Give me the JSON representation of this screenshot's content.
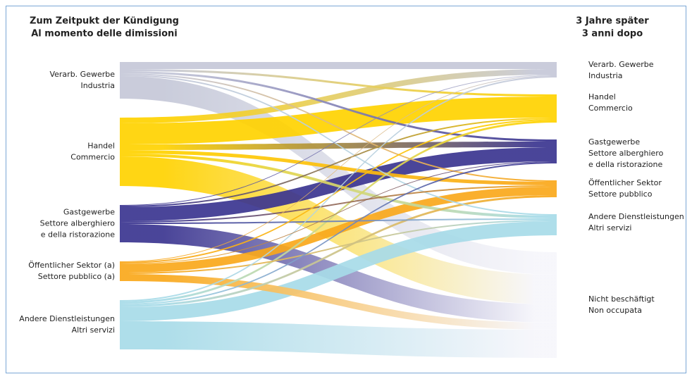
{
  "chart_data": {
    "type": "sankey",
    "title_left": [
      "Zum Zeitpukt der Kündigung",
      "Al momento delle dimissioni"
    ],
    "title_right": [
      "3 Jahre später",
      "3 anni dopo"
    ],
    "sources": [
      {
        "label": [
          "Verarb. Gewerbe",
          "Industria"
        ],
        "color": "#c5c8d8"
      },
      {
        "label": [
          "Handel",
          "Commercio"
        ],
        "color": "#ffd200"
      },
      {
        "label": [
          "Gastgewerbe",
          "Settore alberghiero",
          "e della ristorazione"
        ],
        "color": "#3b3590"
      },
      {
        "label": [
          "Öffentlicher Sektor (a)",
          "Settore pubblico (a)"
        ],
        "color": "#f9a81b"
      },
      {
        "label": [
          "Andere Dienstleistungen",
          "Altri servizi"
        ],
        "color": "#a7dbe8"
      }
    ],
    "targets": [
      {
        "label": [
          "Verarb. Gewerbe",
          "Industria"
        ],
        "color": "#c5c8d8"
      },
      {
        "label": [
          "Handel",
          "Commercio"
        ],
        "color": "#ffd200"
      },
      {
        "label": [
          "Gastgewerbe",
          "Settore alberghiero",
          "e della ristorazione"
        ],
        "color": "#3b3590"
      },
      {
        "label": [
          "Öffentlicher Sektor",
          "Settore pubblico"
        ],
        "color": "#f9a81b"
      },
      {
        "label": [
          "Andere Dienstleistungen",
          "Altri servizi"
        ],
        "color": "#a7dbe8"
      },
      {
        "label": [
          "Nicht beschäftigt",
          "Non occupata"
        ],
        "color": "#f6f6fb"
      }
    ],
    "links": [
      {
        "source": 0,
        "target": 0,
        "value": 10
      },
      {
        "source": 0,
        "target": 1,
        "value": 3
      },
      {
        "source": 0,
        "target": 2,
        "value": 3
      },
      {
        "source": 0,
        "target": 3,
        "value": 2
      },
      {
        "source": 0,
        "target": 4,
        "value": 2
      },
      {
        "source": 0,
        "target": 5,
        "value": 32
      },
      {
        "source": 1,
        "target": 0,
        "value": 8
      },
      {
        "source": 1,
        "target": 1,
        "value": 30
      },
      {
        "source": 1,
        "target": 2,
        "value": 8
      },
      {
        "source": 1,
        "target": 3,
        "value": 5
      },
      {
        "source": 1,
        "target": 4,
        "value": 4
      },
      {
        "source": 1,
        "target": 5,
        "value": 42
      },
      {
        "source": 2,
        "target": 0,
        "value": 1
      },
      {
        "source": 2,
        "target": 1,
        "value": 2
      },
      {
        "source": 2,
        "target": 2,
        "value": 20
      },
      {
        "source": 2,
        "target": 3,
        "value": 2
      },
      {
        "source": 2,
        "target": 4,
        "value": 2
      },
      {
        "source": 2,
        "target": 5,
        "value": 26
      },
      {
        "source": 3,
        "target": 0,
        "value": 1
      },
      {
        "source": 3,
        "target": 1,
        "value": 2
      },
      {
        "source": 3,
        "target": 2,
        "value": 1
      },
      {
        "source": 3,
        "target": 3,
        "value": 12
      },
      {
        "source": 3,
        "target": 4,
        "value": 2
      },
      {
        "source": 3,
        "target": 5,
        "value": 10
      },
      {
        "source": 4,
        "target": 0,
        "value": 2
      },
      {
        "source": 4,
        "target": 1,
        "value": 3
      },
      {
        "source": 4,
        "target": 2,
        "value": 2
      },
      {
        "source": 4,
        "target": 3,
        "value": 3
      },
      {
        "source": 4,
        "target": 4,
        "value": 20
      },
      {
        "source": 4,
        "target": 5,
        "value": 40
      }
    ]
  }
}
